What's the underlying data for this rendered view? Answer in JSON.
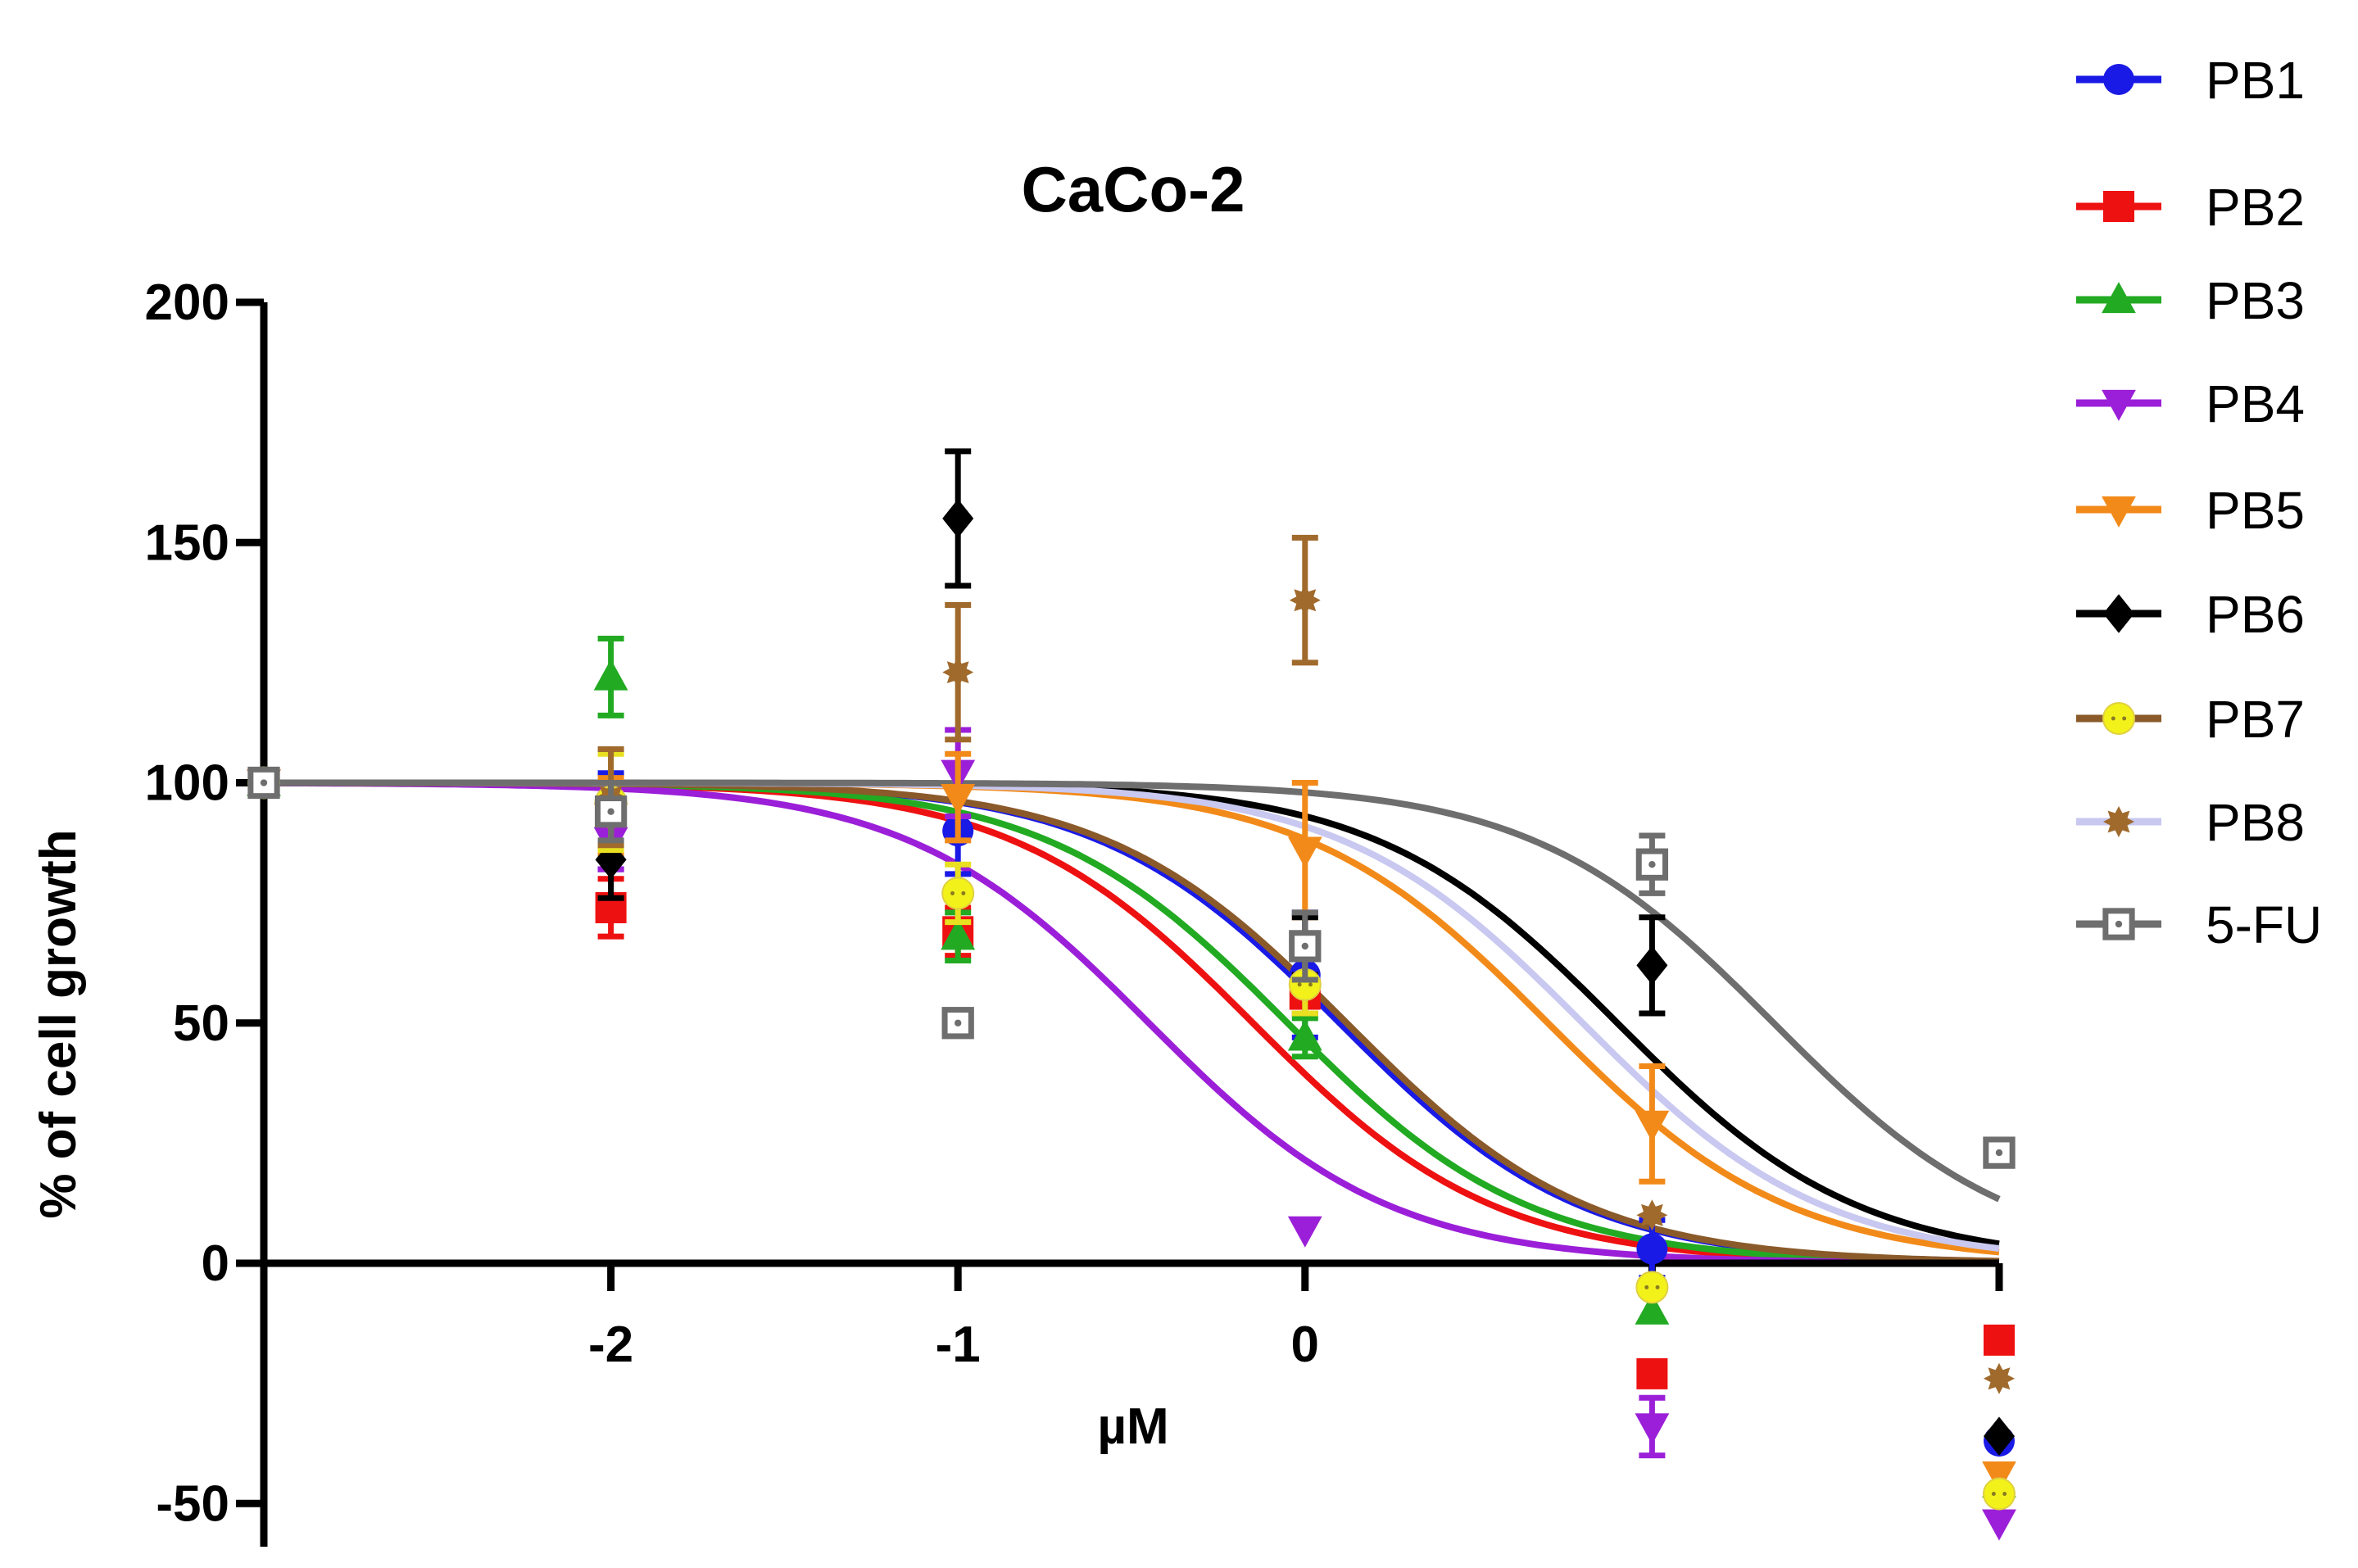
{
  "chart_data": {
    "type": "scatter",
    "title": "CaCo-2",
    "xlabel": "µM",
    "ylabel": "% of cell growth",
    "xlim": [
      -3,
      2
    ],
    "ylim": [
      -60,
      200
    ],
    "xticks": [
      -2,
      -1,
      0,
      1,
      2
    ],
    "xtick_labels": [
      "-2",
      "-1",
      "0",
      "",
      ""
    ],
    "yticks": [
      200,
      150,
      100,
      50,
      0,
      -50
    ],
    "ytick_labels": [
      "200",
      "150",
      "100",
      "50",
      "0",
      "-50"
    ],
    "legend_position": "right",
    "x": [
      -3,
      -2,
      -1,
      0,
      1,
      2
    ],
    "series": [
      {
        "name": "PB1",
        "color": "#1a1ae6",
        "marker": "circle",
        "ec50_log": 0.1,
        "values": [
          100,
          92,
          90,
          60,
          3,
          -37
        ],
        "errors": [
          2,
          10,
          9,
          13,
          6,
          2
        ]
      },
      {
        "name": "PB2",
        "color": "#ee1111",
        "marker": "square",
        "ec50_log": -0.15,
        "values": [
          100,
          74,
          69,
          56,
          -23,
          -16
        ],
        "errors": [
          2,
          6,
          5,
          4,
          2,
          2
        ]
      },
      {
        "name": "PB3",
        "color": "#22aa22",
        "marker": "triangle-up",
        "ec50_log": -0.05,
        "values": [
          100,
          122,
          68,
          47,
          -10,
          -46
        ],
        "errors": [
          2,
          8,
          5,
          4,
          2,
          2
        ]
      },
      {
        "name": "PB4",
        "color": "#9b1fd8",
        "marker": "triangle-down",
        "ec50_log": -0.45,
        "values": [
          100,
          88,
          102,
          7,
          -34,
          -54
        ],
        "errors": [
          2,
          6,
          9,
          2,
          6,
          2
        ]
      },
      {
        "name": "PB5",
        "color": "#f28a1a",
        "marker": "triangle-down",
        "ec50_log": 0.7,
        "values": [
          100,
          93,
          97,
          86,
          29,
          -44
        ],
        "errors": [
          2,
          8,
          9,
          14,
          12,
          2
        ]
      },
      {
        "name": "PB6",
        "color": "#000000",
        "marker": "diamond",
        "ec50_log": 0.9,
        "values": [
          100,
          84,
          155,
          66,
          62,
          -36
        ],
        "errors": [
          2,
          8,
          14,
          6,
          10,
          2
        ]
      },
      {
        "name": "PB7",
        "color": "#f2f21a",
        "marker": "circle-dotted",
        "ec50_log": 0.12,
        "values": [
          100,
          96,
          77,
          58,
          -5,
          -48
        ],
        "errors": [
          2,
          10,
          6,
          6,
          3,
          2
        ]
      },
      {
        "name": "PB8",
        "color": "#a06a2c",
        "marker": "star",
        "ec50_log": 0.8,
        "values": [
          100,
          97,
          123,
          138,
          10,
          -24
        ],
        "errors": [
          2,
          10,
          14,
          13,
          3,
          2
        ]
      },
      {
        "name": "5-FU",
        "color": "#6e6e6e",
        "marker": "open-square",
        "ec50_log": 1.35,
        "values": [
          100,
          94,
          50,
          66,
          83,
          23
        ],
        "errors": [
          2,
          6,
          2,
          7,
          6,
          3
        ]
      }
    ],
    "fit_line_colors": {
      "PB1": "#1a1ae6",
      "PB2": "#ee1111",
      "PB3": "#22aa22",
      "PB4": "#9b1fd8",
      "PB5": "#f28a1a",
      "PB6": "#000000",
      "PB7": "#8a5a2a",
      "PB8": "#c8c8f0",
      "5-FU": "#6e6e6e"
    },
    "legend_line_colors": {
      "PB1": "#1a1ae6",
      "PB2": "#ee1111",
      "PB3": "#22aa22",
      "PB4": "#9b1fd8",
      "PB5": "#f28a1a",
      "PB6": "#000000",
      "PB7": "#8a5a2a",
      "PB8": "#c8c8f0",
      "5-FU": "#6e6e6e"
    },
    "legend_marker_colors": {
      "PB1": "#1a1ae6",
      "PB2": "#ee1111",
      "PB3": "#22aa22",
      "PB4": "#9b1fd8",
      "PB5": "#f28a1a",
      "PB6": "#000000",
      "PB7": "#f2f21a",
      "PB8": "#a06a2c",
      "5-FU": "#6e6e6e"
    }
  }
}
